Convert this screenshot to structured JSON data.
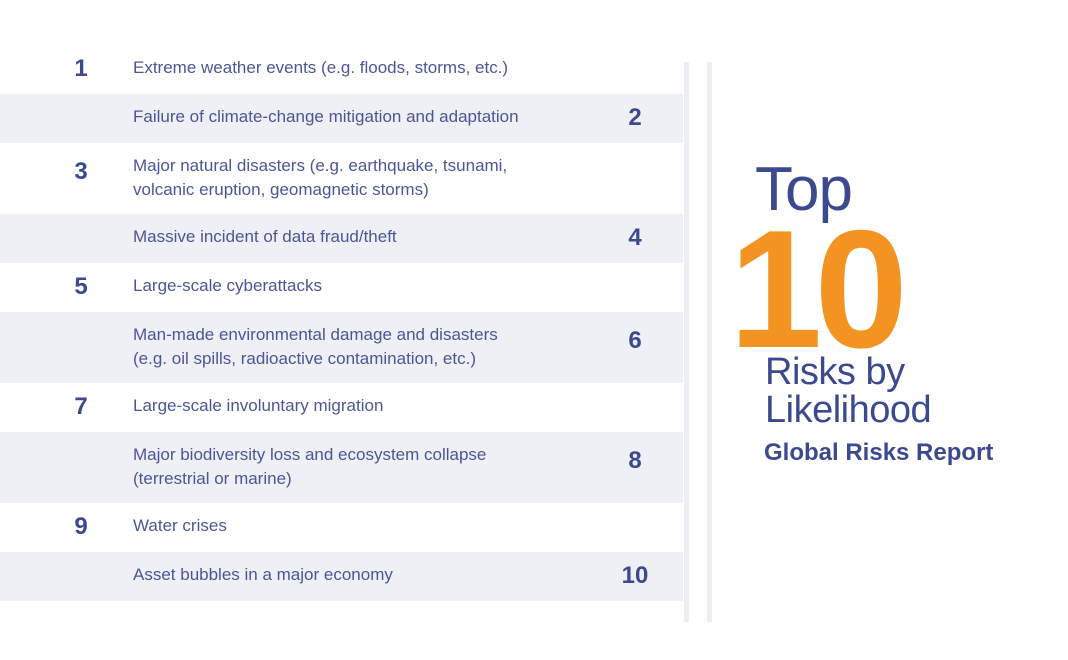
{
  "list": {
    "items": [
      {
        "rank": 1,
        "lines": [
          "Extreme weather events (e.g. floods, storms, etc.)"
        ]
      },
      {
        "rank": 2,
        "lines": [
          "Failure of climate-change mitigation and adaptation"
        ]
      },
      {
        "rank": 3,
        "lines": [
          "Major natural disasters (e.g. earthquake, tsunami,",
          "volcanic eruption, geomagnetic storms)"
        ]
      },
      {
        "rank": 4,
        "lines": [
          "Massive incident of data fraud/theft"
        ]
      },
      {
        "rank": 5,
        "lines": [
          "Large-scale cyberattacks"
        ]
      },
      {
        "rank": 6,
        "lines": [
          "Man-made environmental damage and disasters",
          "(e.g. oil spills, radioactive contamination, etc.)"
        ]
      },
      {
        "rank": 7,
        "lines": [
          "Large-scale involuntary migration"
        ]
      },
      {
        "rank": 8,
        "lines": [
          "Major biodiversity loss and ecosystem collapse",
          "(terrestrial or marine)"
        ]
      },
      {
        "rank": 9,
        "lines": [
          "Water crises"
        ]
      },
      {
        "rank": 10,
        "lines": [
          "Asset bubbles in a major economy"
        ]
      }
    ]
  },
  "heading": {
    "top": "Top",
    "number": "10",
    "subtitle_lines": [
      "Risks by",
      "Likelihood"
    ],
    "report": "Global Risks Report"
  }
}
